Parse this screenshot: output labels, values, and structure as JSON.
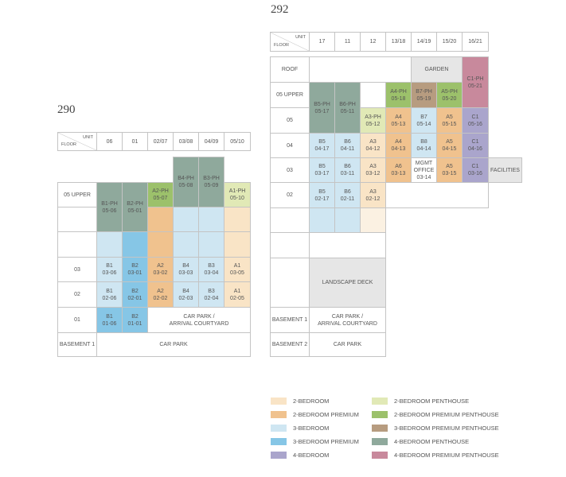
{
  "blocks": [
    {
      "name": "290",
      "unit_label": "UNIT",
      "floor_label": "FLOOR",
      "columns": [
        "06",
        "01",
        "02/07",
        "03/08",
        "04/09",
        "05/10"
      ],
      "floors": [
        "05 UPPER",
        null,
        null,
        "03",
        "02",
        "01",
        "BASEMENT 1"
      ],
      "cells": [
        {
          "lines": [
            "B1-PH",
            "05-06"
          ],
          "color": "#8fa99c"
        },
        {
          "lines": [
            "B2-PH",
            "05-01"
          ],
          "color": "#8fa99c"
        },
        {
          "lines": [
            "A2-PH",
            "05-07"
          ],
          "color": "#9cc16b"
        },
        {
          "lines": [
            "B4-PH",
            "05-08"
          ],
          "color": "#8fa99c"
        },
        {
          "lines": [
            "B3-PH",
            "05-09"
          ],
          "color": "#8fa99c"
        },
        {
          "lines": [
            "A1-PH",
            "05-10"
          ],
          "color": "#e1e9b6"
        },
        {
          "color": "#f0c28e"
        },
        {
          "color": "#cfe6f2"
        },
        {
          "color": "#cfe6f2"
        },
        {
          "color": "#f9e4c6"
        },
        {
          "color": "#cfe6f2"
        },
        {
          "color": "#86c6e6"
        },
        {
          "color": "#f0c28e"
        },
        {
          "color": "#cfe6f2"
        },
        {
          "color": "#cfe6f2"
        },
        {
          "color": "#f9e4c6"
        },
        {
          "lines": [
            "B1",
            "03-06"
          ],
          "color": "#cfe6f2"
        },
        {
          "lines": [
            "B2",
            "03-01"
          ],
          "color": "#86c6e6"
        },
        {
          "lines": [
            "A2",
            "03-02"
          ],
          "color": "#f0c28e"
        },
        {
          "lines": [
            "B4",
            "03-03"
          ],
          "color": "#cfe6f2"
        },
        {
          "lines": [
            "B3",
            "03-04"
          ],
          "color": "#cfe6f2"
        },
        {
          "lines": [
            "A1",
            "03-05"
          ],
          "color": "#f9e4c6"
        },
        {
          "lines": [
            "B1",
            "02-06"
          ],
          "color": "#cfe6f2"
        },
        {
          "lines": [
            "B2",
            "02-01"
          ],
          "color": "#86c6e6"
        },
        {
          "lines": [
            "A2",
            "02-02"
          ],
          "color": "#f0c28e"
        },
        {
          "lines": [
            "B4",
            "02-03"
          ],
          "color": "#cfe6f2"
        },
        {
          "lines": [
            "B3",
            "02-04"
          ],
          "color": "#cfe6f2"
        },
        {
          "lines": [
            "A1",
            "02-05"
          ],
          "color": "#f9e4c6"
        },
        {
          "lines": [
            "B1",
            "01-06"
          ],
          "color": "#86c6e6"
        },
        {
          "lines": [
            "B2",
            "01-01"
          ],
          "color": "#86c6e6"
        },
        {
          "lines": [
            "CAR PARK /",
            "ARRIVAL COURTYARD"
          ],
          "color": "#ffffff"
        },
        {
          "lines": [
            "CAR PARK"
          ],
          "color": "#ffffff"
        }
      ]
    },
    {
      "name": "292",
      "unit_label": "UNIT",
      "floor_label": "FLOOR",
      "columns": [
        "17",
        "11",
        "12",
        "13/18",
        "14/19",
        "15/20",
        "16/21"
      ],
      "floors": [
        "ROOF",
        "05 UPPER",
        "05",
        "04",
        "03",
        "02",
        null,
        null,
        null,
        "BASEMENT 1",
        "BASEMENT 2"
      ],
      "cells": [
        {
          "lines": [
            "GARDEN"
          ],
          "color": "#e6e6e6"
        },
        {
          "lines": [
            "C1-PH",
            "05-21"
          ],
          "color": "#c8899c"
        },
        {
          "lines": [
            "B5-PH",
            "05-17"
          ],
          "color": "#8fa99c"
        },
        {
          "lines": [
            "B6-PH",
            "05-11"
          ],
          "color": "#8fa99c"
        },
        {
          "lines": [
            "A4-PH",
            "05-18"
          ],
          "color": "#9cc16b"
        },
        {
          "lines": [
            "B7-PH",
            "05-19"
          ],
          "color": "#b79c80"
        },
        {
          "lines": [
            "A5-PH",
            "05-20"
          ],
          "color": "#9cc16b"
        },
        {
          "lines": [
            "A3-PH",
            "05-12"
          ],
          "color": "#e1e9b6"
        },
        {
          "lines": [
            "A4",
            "05-13"
          ],
          "color": "#f0c28e"
        },
        {
          "lines": [
            "B7",
            "05-14"
          ],
          "color": "#cfe6f2"
        },
        {
          "lines": [
            "A5",
            "05-15"
          ],
          "color": "#f0c28e"
        },
        {
          "lines": [
            "C1",
            "05-16"
          ],
          "color": "#aaa5cc"
        },
        {
          "lines": [
            "B5",
            "04-17"
          ],
          "color": "#cfe6f2"
        },
        {
          "lines": [
            "B6",
            "04-11"
          ],
          "color": "#cfe6f2"
        },
        {
          "lines": [
            "A3",
            "04-12"
          ],
          "color": "#f9e4c6"
        },
        {
          "lines": [
            "A4",
            "04-13"
          ],
          "color": "#f0c28e"
        },
        {
          "lines": [
            "B8",
            "04-14"
          ],
          "color": "#cfe6f2"
        },
        {
          "lines": [
            "A5",
            "04-15"
          ],
          "color": "#f0c28e"
        },
        {
          "lines": [
            "C1",
            "04-16"
          ],
          "color": "#aaa5cc"
        },
        {
          "lines": [
            "B5",
            "03-17"
          ],
          "color": "#cfe6f2"
        },
        {
          "lines": [
            "B6",
            "03-11"
          ],
          "color": "#cfe6f2"
        },
        {
          "lines": [
            "A3",
            "03-12"
          ],
          "color": "#f9e4c6"
        },
        {
          "lines": [
            "A6",
            "03-13"
          ],
          "color": "#f0c28e"
        },
        {
          "lines": [
            "MGMT",
            "OFFICE",
            "03-14"
          ],
          "color": "#ffffff"
        },
        {
          "lines": [
            "A5",
            "03-15"
          ],
          "color": "#f0c28e"
        },
        {
          "lines": [
            "C1",
            "03-16"
          ],
          "color": "#aaa5cc"
        },
        {
          "lines": [
            "FACILITIES"
          ],
          "color": "#e6e6e6"
        },
        {
          "lines": [
            "B5",
            "02-17"
          ],
          "color": "#cfe6f2"
        },
        {
          "lines": [
            "B6",
            "02-11"
          ],
          "color": "#cfe6f2"
        },
        {
          "lines": [
            "A3",
            "02-12"
          ],
          "color": "#f9e4c6"
        },
        {
          "color": "#cfe6f2"
        },
        {
          "color": "#cfe6f2"
        },
        {
          "color": "#fbf1e2"
        },
        {
          "lines": [
            "LANDSCAPE DECK"
          ],
          "color": "#e6e6e6"
        },
        {
          "lines": [
            "CAR PARK /",
            "ARRIVAL COURTYARD"
          ],
          "color": "#ffffff"
        },
        {
          "lines": [
            "CAR PARK"
          ],
          "color": "#ffffff"
        }
      ]
    }
  ],
  "legend": [
    {
      "label": "2-BEDROOM",
      "color": "#f9e4c6"
    },
    {
      "label": "2-BEDROOM PREMIUM",
      "color": "#f0c28e"
    },
    {
      "label": "3-BEDROOM",
      "color": "#cfe6f2"
    },
    {
      "label": "3-BEDROOM PREMIUM",
      "color": "#86c6e6"
    },
    {
      "label": "4-BEDROOM",
      "color": "#aaa5cc"
    },
    {
      "label": "2-BEDROOM PENTHOUSE",
      "color": "#e1e9b6"
    },
    {
      "label": "2-BEDROOM PREMIUM PENTHOUSE",
      "color": "#9cc16b"
    },
    {
      "label": "3-BEDROOM PREMIUM PENTHOUSE",
      "color": "#b79c80"
    },
    {
      "label": "4-BEDROOM PENTHOUSE",
      "color": "#8fa99c"
    },
    {
      "label": "4-BEDROOM PREMIUM PENTHOUSE",
      "color": "#c8899c"
    }
  ]
}
